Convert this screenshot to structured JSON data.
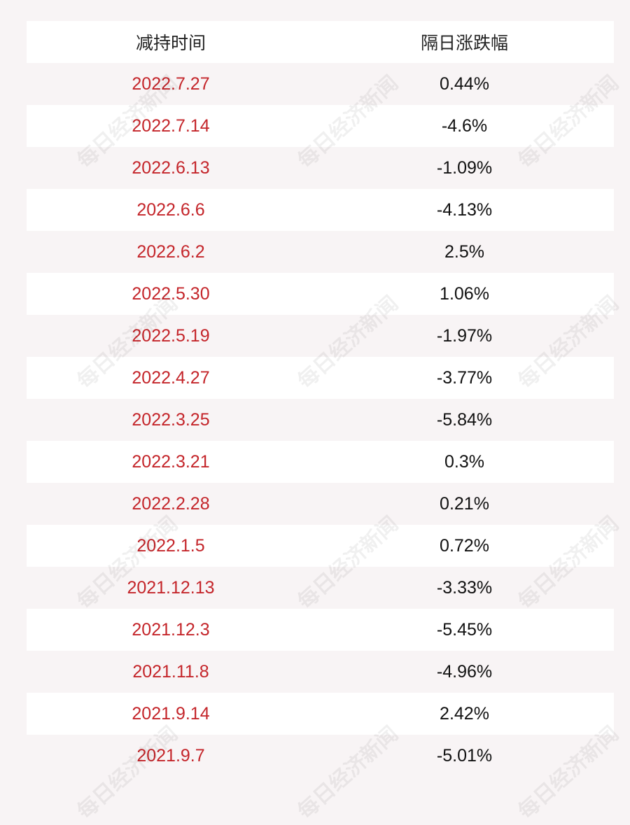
{
  "table": {
    "header": {
      "col1": "减持时间",
      "col2": "隔日涨跌幅"
    },
    "rows": [
      {
        "date": "2022.7.27",
        "change": "0.44%"
      },
      {
        "date": "2022.7.14",
        "change": "-4.6%"
      },
      {
        "date": "2022.6.13",
        "change": "-1.09%"
      },
      {
        "date": "2022.6.6",
        "change": "-4.13%"
      },
      {
        "date": "2022.6.2",
        "change": "2.5%"
      },
      {
        "date": "2022.5.30",
        "change": "1.06%"
      },
      {
        "date": "2022.5.19",
        "change": "-1.97%"
      },
      {
        "date": "2022.4.27",
        "change": "-3.77%"
      },
      {
        "date": "2022.3.25",
        "change": "-5.84%"
      },
      {
        "date": "2022.3.21",
        "change": "0.3%"
      },
      {
        "date": "2022.2.28",
        "change": "0.21%"
      },
      {
        "date": "2022.1.5",
        "change": "0.72%"
      },
      {
        "date": "2021.12.13",
        "change": "-3.33%"
      },
      {
        "date": "2021.12.3",
        "change": "-5.45%"
      },
      {
        "date": "2021.11.8",
        "change": "-4.96%"
      },
      {
        "date": "2021.9.14",
        "change": "2.42%"
      },
      {
        "date": "2021.9.7",
        "change": "-5.01%"
      }
    ]
  },
  "watermark": "每日经济新闻",
  "colors": {
    "date_text": "#c4252a",
    "value_text": "#111111",
    "row_white": "#ffffff",
    "row_tint": "#f8f4f5"
  }
}
